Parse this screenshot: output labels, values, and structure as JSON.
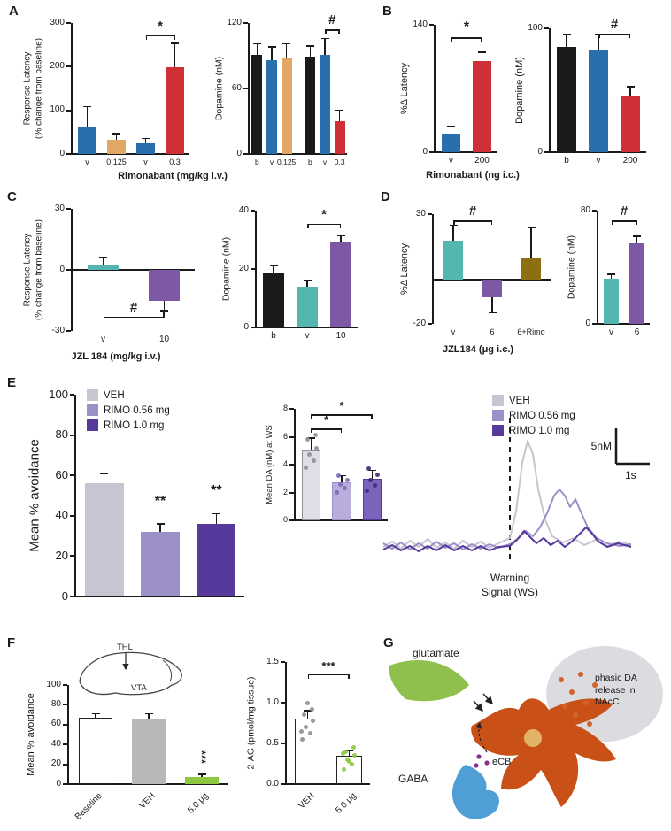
{
  "panels": {
    "A": "A",
    "B": "B",
    "C": "C",
    "D": "D",
    "E": "E",
    "F": "F",
    "G": "G"
  },
  "axis_titles": {
    "A": "Rimonabant (mg/kg i.v.)",
    "B": "Rimonabant (ng i.c.)",
    "C": "JZL 184 (mg/kg i.v.)",
    "D": "JZL184 (μg i.c.)"
  },
  "panelE": {
    "legend": [
      {
        "label": "VEH",
        "color": "#c7c5d1"
      },
      {
        "label": "RIMO 0.56 mg",
        "color": "#9d8fc7"
      },
      {
        "label": "RIMO 1.0 mg",
        "color": "#57399b"
      }
    ],
    "warning_label": "Warning\nSignal (WS)",
    "scale_v": "5nM",
    "scale_h": "1s"
  },
  "panelF": {
    "thl": "THL",
    "vta": "VTA"
  },
  "panelG": {
    "glutamate": "glutamate",
    "gaba": "GABA",
    "ecb": "eCB",
    "nacc": "phasic DA\nrelease in\nNAcC"
  },
  "chart_data": [
    {
      "id": "A_left",
      "type": "bar",
      "m": [
        56,
        14,
        4,
        18
      ],
      "ylx": 12,
      "fs": 10,
      "xfs": 9,
      "ylabel": "Response Latency\n(% change from baseline)",
      "ylfs": 10,
      "ylim": [
        0,
        300
      ],
      "yticks": [
        0,
        100,
        200,
        300
      ],
      "categories": [
        "v",
        "0.125",
        "v",
        "0.3"
      ],
      "values": [
        60,
        32,
        25,
        198
      ],
      "errors": [
        48,
        15,
        10,
        55
      ],
      "colors": [
        "#2a6fad",
        "#e2a765",
        "#2a6fad",
        "#cf3036"
      ],
      "annotations": [
        {
          "from": 2,
          "to": 3,
          "label": "*",
          "y": 272
        }
      ]
    },
    {
      "id": "A_right",
      "type": "bar",
      "m": [
        44,
        14,
        2,
        18
      ],
      "ylx": 10,
      "fs": 10,
      "xfs": 8.5,
      "ylabel": "Dopamine (nM)",
      "ylfs": 10.5,
      "ylim": [
        0,
        120
      ],
      "yticks": [
        0,
        60,
        120
      ],
      "categories": [
        "b",
        "v",
        "0.125",
        "b",
        "v",
        "0.3"
      ],
      "values": [
        91,
        86,
        88,
        89,
        91,
        30
      ],
      "errors": [
        10,
        12,
        13,
        10,
        15,
        10
      ],
      "colors": [
        "#1a1a1a",
        "#2a6fad",
        "#e2a765",
        "#1a1a1a",
        "#2a6fad",
        "#cf3036"
      ],
      "gap_after": [
        2
      ],
      "bwf": 0.72,
      "annotations": [
        {
          "from": 4,
          "to": 5,
          "label": "#",
          "y": 114
        }
      ]
    },
    {
      "id": "B_left",
      "type": "bar",
      "m": [
        46,
        16,
        4,
        18
      ],
      "ylx": 12,
      "fs": 10,
      "ylabel": "%Δ Latency",
      "ylfs": 11,
      "ylim": [
        0,
        140
      ],
      "yticks": [
        0,
        140
      ],
      "categories": [
        "v",
        "200"
      ],
      "values": [
        20,
        100
      ],
      "errors": [
        8,
        10
      ],
      "colors": [
        "#2a6fad",
        "#cf3036"
      ],
      "sfs": 16,
      "annotations": [
        {
          "from": 0,
          "to": 1,
          "label": "*",
          "y": 126
        }
      ]
    },
    {
      "id": "B_right",
      "type": "bar",
      "m": [
        46,
        20,
        2,
        18
      ],
      "ylx": 12,
      "fs": 10,
      "ylabel": "Dopamine (nM)",
      "ylfs": 11,
      "ylim": [
        0,
        100
      ],
      "yticks": [
        0,
        100
      ],
      "categories": [
        "b",
        "v",
        "200"
      ],
      "values": [
        85,
        83,
        45
      ],
      "errors": [
        10,
        12,
        8
      ],
      "colors": [
        "#1a1a1a",
        "#2a6fad",
        "#cf3036"
      ],
      "annotations": [
        {
          "from": 1,
          "to": 2,
          "label": "#",
          "y": 96
        }
      ]
    },
    {
      "id": "C_left",
      "type": "bar",
      "m": [
        56,
        10,
        4,
        20
      ],
      "ylx": 12,
      "fs": 10,
      "ylabel": "Response Latency\n(% change from baseline)",
      "ylfs": 10,
      "ylim": [
        -30,
        30
      ],
      "yticks": [
        -30,
        0,
        30
      ],
      "categories": [
        "v",
        "10"
      ],
      "values": [
        2,
        -15
      ],
      "errors": [
        4,
        5
      ],
      "colors": [
        "#53b7b0",
        "#7d58a5"
      ],
      "bwf": 0.5,
      "annotations": [
        {
          "from": 0,
          "to": 1,
          "label": "#",
          "y": -23,
          "below": true
        }
      ]
    },
    {
      "id": "C_right",
      "type": "bar",
      "m": [
        44,
        12,
        4,
        18
      ],
      "ylx": 10,
      "fs": 10,
      "ylabel": "Dopamine (nM)",
      "ylfs": 10.5,
      "ylim": [
        0,
        40
      ],
      "yticks": [
        0,
        20,
        40
      ],
      "categories": [
        "b",
        "v",
        "10"
      ],
      "values": [
        18.5,
        14,
        29
      ],
      "errors": [
        2.5,
        2,
        2.5
      ],
      "colors": [
        "#1a1a1a",
        "#53b7b0",
        "#7d58a5"
      ],
      "annotations": [
        {
          "from": 1,
          "to": 2,
          "label": "*",
          "y": 35.5
        }
      ]
    },
    {
      "id": "D_left",
      "type": "bar",
      "m": [
        44,
        16,
        4,
        18
      ],
      "ylx": 12,
      "fs": 10,
      "xfs": 9,
      "ylabel": "%Δ Latency",
      "ylfs": 11,
      "ylim": [
        -20,
        30
      ],
      "yticks": [
        -20,
        30
      ],
      "categories": [
        "v",
        "6",
        "6+Rimo"
      ],
      "values": [
        18,
        -8,
        10
      ],
      "errors": [
        7,
        7,
        14
      ],
      "colors": [
        "#53b7b0",
        "#7d58a5",
        "#8e6e13"
      ],
      "bwf": 0.52,
      "annotations": [
        {
          "from": 0,
          "to": 1,
          "label": "#",
          "y": 27
        }
      ]
    },
    {
      "id": "D_right",
      "type": "bar",
      "m": [
        40,
        12,
        2,
        18
      ],
      "ylx": 10,
      "fs": 10,
      "ylabel": "Dopamine (nM)",
      "ylfs": 10.5,
      "ylim": [
        0,
        80
      ],
      "yticks": [
        0,
        80
      ],
      "categories": [
        "v",
        "6"
      ],
      "values": [
        32,
        57
      ],
      "errors": [
        3,
        5
      ],
      "colors": [
        "#53b7b0",
        "#7d58a5"
      ],
      "annotations": [
        {
          "from": 0,
          "to": 1,
          "label": "#",
          "y": 73
        }
      ]
    },
    {
      "id": "E_main",
      "type": "bar",
      "m": [
        60,
        10,
        6,
        14
      ],
      "ylx": 14,
      "fs": 13,
      "ylabel": "Mean % avoidance",
      "ylfs": 15,
      "ylim": [
        0,
        100
      ],
      "yticks": [
        0,
        20,
        40,
        60,
        80,
        100
      ],
      "categories": [
        "",
        "",
        ""
      ],
      "values": [
        56,
        32,
        36
      ],
      "errors": [
        5,
        4,
        5
      ],
      "colors": [
        "#c7c5d1",
        "#9d8fc7",
        "#57399b"
      ],
      "bwf": 0.7,
      "sfs": 16,
      "annotations": [
        {
          "from": 1,
          "to": 1,
          "label": "**",
          "y": 44
        },
        {
          "from": 2,
          "to": 2,
          "label": "**",
          "y": 49
        }
      ]
    },
    {
      "id": "E_inset",
      "type": "bar",
      "m": [
        38,
        16,
        6,
        8
      ],
      "ylx": 9,
      "fs": 9,
      "ylabel": "Mean DA (nM) at WS",
      "ylfs": 9.5,
      "ylim": [
        0,
        8
      ],
      "yticks": [
        0,
        2,
        4,
        6,
        8
      ],
      "categories": [
        "",
        "",
        ""
      ],
      "values": [
        5,
        2.7,
        3
      ],
      "errors": [
        0.9,
        0.5,
        0.6
      ],
      "colors": [
        "#dfdee6",
        "#b9addc",
        "#7a64bc"
      ],
      "strokes": [
        "#8f8f98",
        "#9d8fc7",
        "#57399b"
      ],
      "dots": [
        [
          3.8,
          4.3,
          4.7,
          5.2,
          5.8,
          6.1
        ],
        [
          2.0,
          2.3,
          2.6,
          2.9,
          3.2
        ],
        [
          2.1,
          2.5,
          2.9,
          3.3,
          3.7
        ]
      ],
      "dot_colors": [
        "#8f8f98",
        "#7b6bb4",
        "#3f2b7a"
      ],
      "sfs": 13,
      "annotations": [
        {
          "from": 0,
          "to": 1,
          "label": "*",
          "y": 6.6
        },
        {
          "from": 0,
          "to": 2,
          "label": "*",
          "y": 7.6
        }
      ]
    },
    {
      "id": "F_main",
      "type": "bar",
      "m": [
        54,
        8,
        4,
        46
      ],
      "ylx": 12,
      "fs": 10,
      "xfs": 10,
      "ylabel": "Mean % avoidance",
      "ylfs": 11,
      "ylim": [
        0,
        100
      ],
      "yticks": [
        0,
        20,
        40,
        60,
        80,
        100
      ],
      "categories": [
        "Baseline",
        "VEH",
        "5.0 μg"
      ],
      "values": [
        67,
        65,
        7
      ],
      "errors": [
        4,
        6,
        3
      ],
      "colors": [
        "#ffffff",
        "#b8b8b8",
        "#8dc63f"
      ],
      "strokes": [
        "#222222",
        null,
        null
      ],
      "xtick_rotate": true,
      "sfs": 13,
      "annotations": [
        {
          "from": 2,
          "to": 2,
          "label": "***",
          "y": 22,
          "rotate": true
        }
      ]
    },
    {
      "id": "F_right",
      "type": "bar",
      "m": [
        50,
        12,
        4,
        46
      ],
      "ylx": 10,
      "fs": 10,
      "xfs": 10,
      "ylabel": "2-AG (pmol/mg tissue)",
      "ylfs": 10.5,
      "ylim": [
        0,
        1.5
      ],
      "yticks": [
        "0.0",
        "0.5",
        "1.0",
        "1.5"
      ],
      "categories": [
        "VEH",
        "5.0 μg"
      ],
      "values": [
        0.8,
        0.35
      ],
      "errors": [
        0.1,
        0.06
      ],
      "colors": [
        "#ffffff",
        "#ffffff"
      ],
      "strokes": [
        "#222222",
        "#222222"
      ],
      "dots": [
        [
          0.55,
          0.62,
          0.7,
          0.78,
          0.85,
          0.92,
          1.0,
          0.65
        ],
        [
          0.18,
          0.24,
          0.3,
          0.35,
          0.4,
          0.45,
          0.28,
          0.38
        ]
      ],
      "dot_colors": [
        "#8f8f8f",
        "#8dc63f"
      ],
      "xtick_rotate": true,
      "sfs": 13,
      "annotations": [
        {
          "from": 0,
          "to": 1,
          "label": "***",
          "y": 1.35
        }
      ]
    },
    {
      "id": "E_traces",
      "type": "line",
      "x_note": "dopamine traces around warning signal; dashed line = WS onset; scale 5nM / 1s",
      "series": [
        {
          "name": "VEH",
          "color": "#c7c5d1",
          "points": [
            [
              5,
              150
            ],
            [
              15,
              144
            ],
            [
              25,
              152
            ],
            [
              35,
              143
            ],
            [
              45,
              150
            ],
            [
              55,
              141
            ],
            [
              65,
              151
            ],
            [
              75,
              145
            ],
            [
              85,
              152
            ],
            [
              95,
              143
            ],
            [
              105,
              150
            ],
            [
              115,
              144
            ],
            [
              125,
              151
            ],
            [
              135,
              146
            ],
            [
              148,
              140
            ],
            [
              155,
              110
            ],
            [
              162,
              55
            ],
            [
              168,
              30
            ],
            [
              174,
              45
            ],
            [
              180,
              85
            ],
            [
              188,
              120
            ],
            [
              196,
              138
            ],
            [
              208,
              145
            ],
            [
              220,
              140
            ],
            [
              232,
              148
            ],
            [
              245,
              142
            ],
            [
              258,
              149
            ],
            [
              272,
              144
            ],
            [
              285,
              148
            ]
          ]
        },
        {
          "name": "RIMO 0.56 mg",
          "color": "#9d8fc7",
          "points": [
            [
              5,
              146
            ],
            [
              15,
              152
            ],
            [
              25,
              145
            ],
            [
              35,
              153
            ],
            [
              45,
              146
            ],
            [
              55,
              152
            ],
            [
              65,
              144
            ],
            [
              75,
              151
            ],
            [
              85,
              146
            ],
            [
              95,
              153
            ],
            [
              105,
              147
            ],
            [
              115,
              152
            ],
            [
              125,
              147
            ],
            [
              135,
              151
            ],
            [
              148,
              147
            ],
            [
              158,
              140
            ],
            [
              166,
              132
            ],
            [
              174,
              138
            ],
            [
              182,
              128
            ],
            [
              190,
              112
            ],
            [
              198,
              92
            ],
            [
              204,
              85
            ],
            [
              210,
              92
            ],
            [
              216,
              105
            ],
            [
              222,
              96
            ],
            [
              228,
              110
            ],
            [
              236,
              128
            ],
            [
              246,
              140
            ],
            [
              258,
              146
            ],
            [
              272,
              149
            ],
            [
              285,
              147
            ]
          ]
        },
        {
          "name": "RIMO 1.0 mg",
          "color": "#57399b",
          "points": [
            [
              5,
              153
            ],
            [
              15,
              148
            ],
            [
              25,
              154
            ],
            [
              35,
              149
            ],
            [
              45,
              155
            ],
            [
              55,
              149
            ],
            [
              65,
              154
            ],
            [
              75,
              148
            ],
            [
              85,
              154
            ],
            [
              95,
              149
            ],
            [
              105,
              154
            ],
            [
              115,
              149
            ],
            [
              125,
              154
            ],
            [
              135,
              150
            ],
            [
              148,
              149
            ],
            [
              156,
              142
            ],
            [
              164,
              132
            ],
            [
              170,
              138
            ],
            [
              178,
              146
            ],
            [
              186,
              140
            ],
            [
              194,
              148
            ],
            [
              202,
              143
            ],
            [
              210,
              150
            ],
            [
              218,
              144
            ],
            [
              226,
              136
            ],
            [
              234,
              128
            ],
            [
              240,
              134
            ],
            [
              248,
              144
            ],
            [
              258,
              150
            ],
            [
              270,
              146
            ],
            [
              285,
              150
            ]
          ]
        }
      ]
    }
  ]
}
